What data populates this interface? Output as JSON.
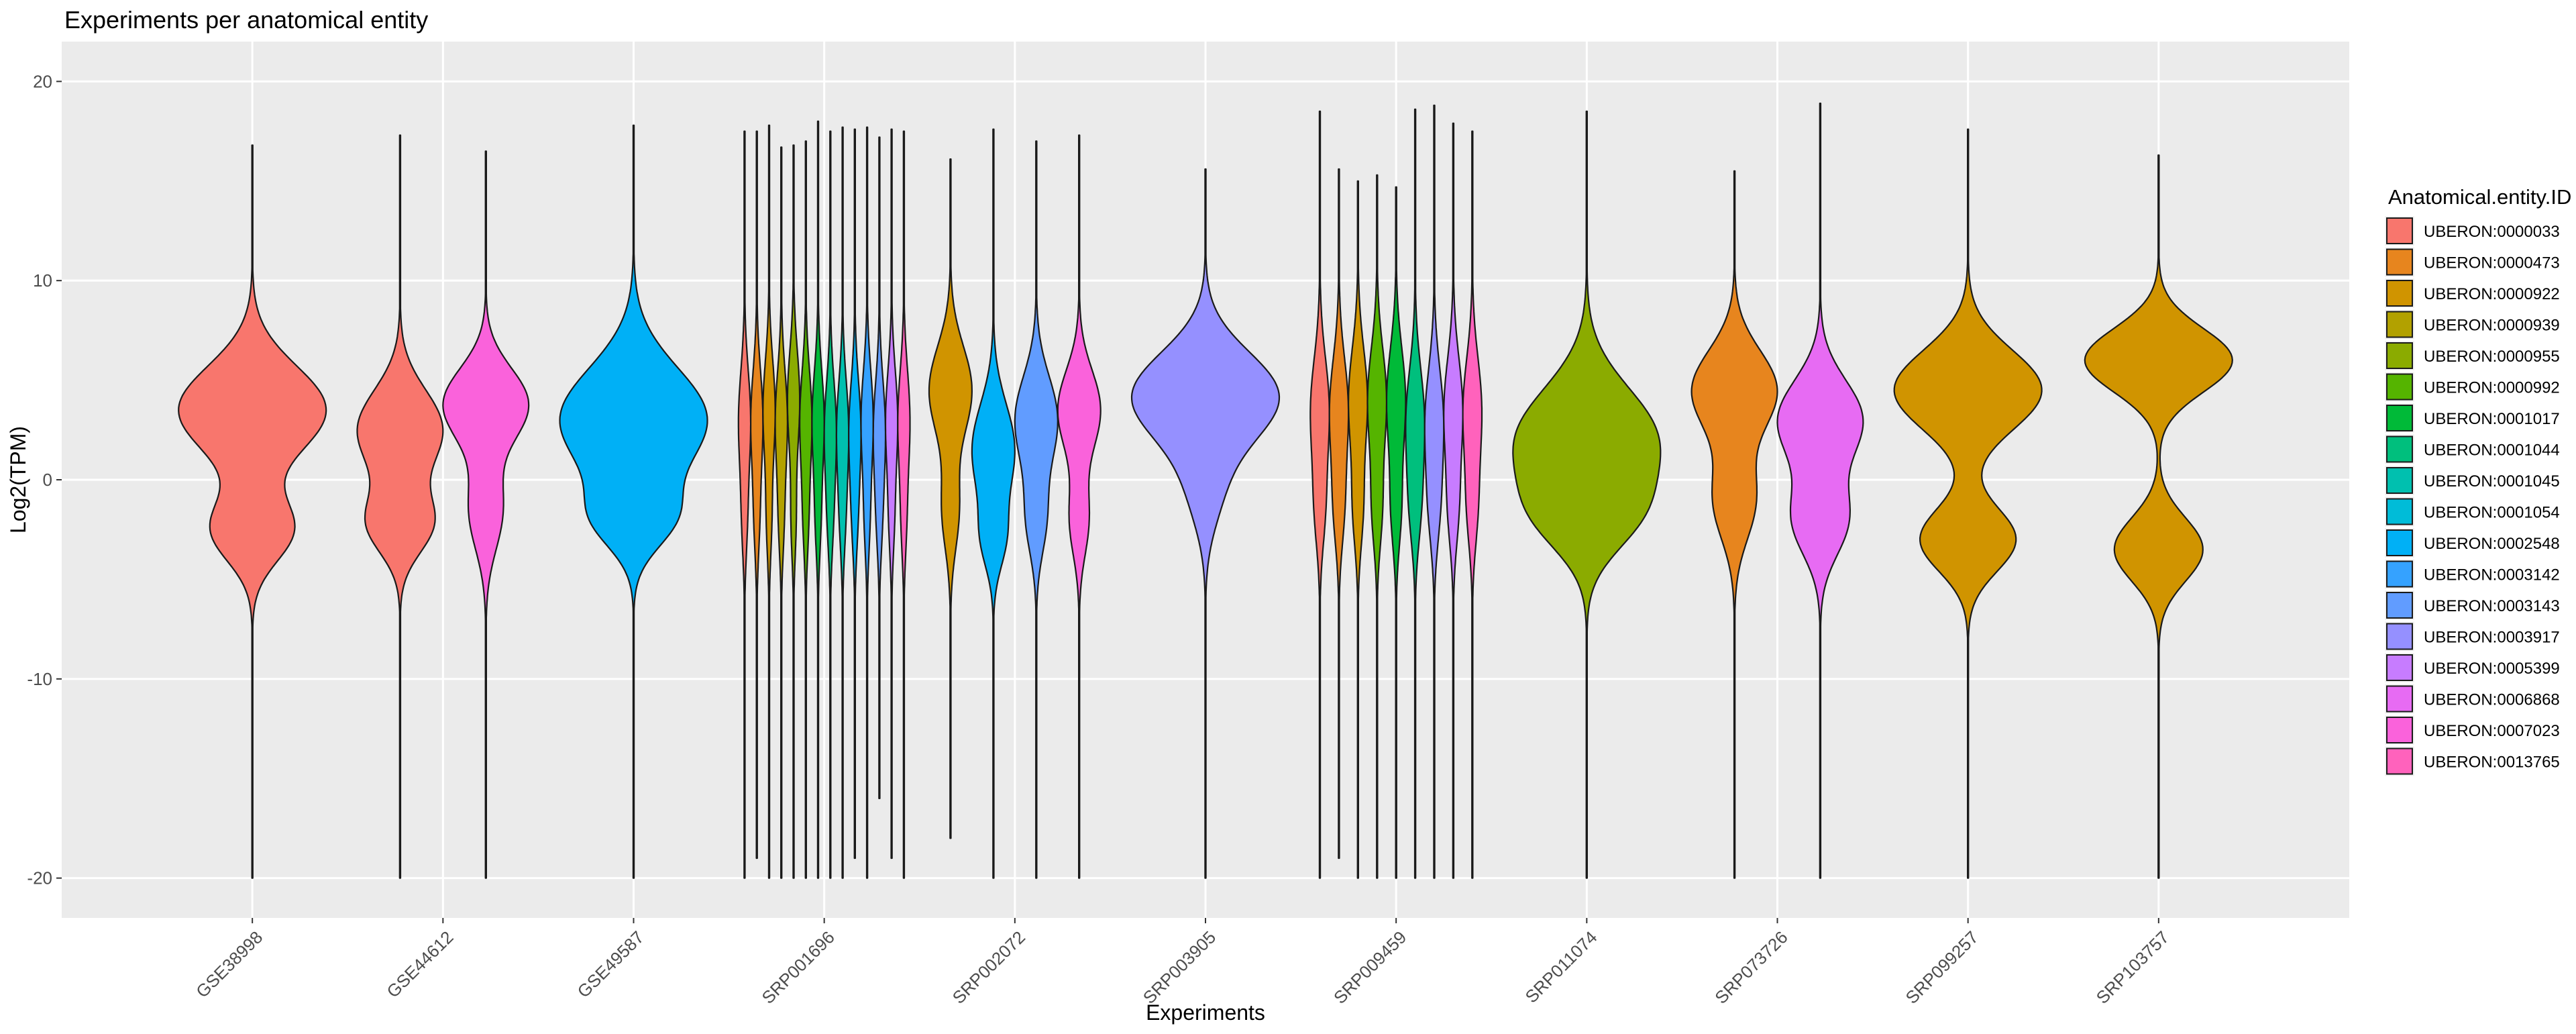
{
  "chart_data": {
    "type": "violin",
    "title": "Experiments per anatomical entity",
    "xlabel": "Experiments",
    "ylabel": "Log2(TPM)",
    "ylim": [
      -22,
      22
    ],
    "yticks": [
      -20,
      -10,
      0,
      10,
      20
    ],
    "grid": true,
    "legend": {
      "title": "Anatomical.entity.ID",
      "position": "right",
      "entries": [
        {
          "label": "UBERON:0000033",
          "color": "#F8766D"
        },
        {
          "label": "UBERON:0000473",
          "color": "#E7851E"
        },
        {
          "label": "UBERON:0000922",
          "color": "#D09400"
        },
        {
          "label": "UBERON:0000939",
          "color": "#B2A100"
        },
        {
          "label": "UBERON:0000955",
          "color": "#8BAB00"
        },
        {
          "label": "UBERON:0000992",
          "color": "#55B400"
        },
        {
          "label": "UBERON:0001017",
          "color": "#00BA38"
        },
        {
          "label": "UBERON:0001044",
          "color": "#00BF7D"
        },
        {
          "label": "UBERON:0001045",
          "color": "#00C0AF"
        },
        {
          "label": "UBERON:0001054",
          "color": "#00BCD8"
        },
        {
          "label": "UBERON:0002548",
          "color": "#00B0F6"
        },
        {
          "label": "UBERON:0003142",
          "color": "#35A2FF"
        },
        {
          "label": "UBERON:0003143",
          "color": "#619CFF"
        },
        {
          "label": "UBERON:0003917",
          "color": "#9590FF"
        },
        {
          "label": "UBERON:0005399",
          "color": "#C77CFF"
        },
        {
          "label": "UBERON:0006868",
          "color": "#E76BF3"
        },
        {
          "label": "UBERON:0007023",
          "color": "#FA62DB"
        },
        {
          "label": "UBERON:0013765",
          "color": "#FF62BC"
        }
      ]
    },
    "categories": [
      "GSE38998",
      "GSE44612",
      "GSE49587",
      "SRP001696",
      "SRP002072",
      "SRP003905",
      "SRP009459",
      "SRP011074",
      "SRP073726",
      "SRP099257",
      "SRP103757"
    ],
    "violins": [
      {
        "experiment": "GSE38998",
        "entity": "UBERON:0000033",
        "min": -20,
        "max": 16.8,
        "modes": [
          [
            3.5,
            1.0,
            2.2
          ],
          [
            -2.5,
            0.55,
            1.6
          ]
        ]
      },
      {
        "experiment": "GSE44612",
        "entity": "UBERON:0000033",
        "min": -20,
        "max": 17.3,
        "modes": [
          [
            2.5,
            0.8,
            2.0
          ],
          [
            -2.2,
            0.6,
            1.5
          ]
        ]
      },
      {
        "experiment": "GSE44612",
        "entity": "UBERON:0007023",
        "min": -20,
        "max": 16.5,
        "modes": [
          [
            3.8,
            1.0,
            1.8
          ],
          [
            -1.5,
            0.4,
            2.0
          ]
        ]
      },
      {
        "experiment": "GSE49587",
        "entity": "UBERON:0002548",
        "min": -20,
        "max": 17.8,
        "modes": [
          [
            3.0,
            1.0,
            2.6
          ],
          [
            -2.0,
            0.45,
            1.5
          ]
        ]
      },
      {
        "experiment": "SRP001696",
        "entity": "UBERON:0000033",
        "min": -20,
        "max": 17.5,
        "modes": [
          [
            3.0,
            1.0,
            2.5
          ],
          [
            -2.0,
            0.4,
            2.0
          ]
        ]
      },
      {
        "experiment": "SRP001696",
        "entity": "UBERON:0000473",
        "min": -19,
        "max": 17.5,
        "modes": [
          [
            3.0,
            1.0,
            2.5
          ],
          [
            -2.0,
            0.4,
            2.0
          ]
        ]
      },
      {
        "experiment": "SRP001696",
        "entity": "UBERON:0000922",
        "min": -20,
        "max": 17.8,
        "modes": [
          [
            3.5,
            1.0,
            2.5
          ],
          [
            -2.0,
            0.4,
            2.0
          ]
        ]
      },
      {
        "experiment": "SRP001696",
        "entity": "UBERON:0000939",
        "min": -20,
        "max": 16.7,
        "modes": [
          [
            3.0,
            1.0,
            2.5
          ],
          [
            -2.0,
            0.4,
            2.0
          ]
        ]
      },
      {
        "experiment": "SRP001696",
        "entity": "UBERON:0000955",
        "min": -20,
        "max": 16.8,
        "modes": [
          [
            4.0,
            1.0,
            2.5
          ],
          [
            -2.0,
            0.4,
            2.0
          ]
        ]
      },
      {
        "experiment": "SRP001696",
        "entity": "UBERON:0000992",
        "min": -20,
        "max": 17.0,
        "modes": [
          [
            3.0,
            1.0,
            2.5
          ],
          [
            -2.0,
            0.4,
            2.0
          ]
        ]
      },
      {
        "experiment": "SRP001696",
        "entity": "UBERON:0001017",
        "min": -20,
        "max": 18.0,
        "modes": [
          [
            3.0,
            1.0,
            2.5
          ],
          [
            -2.0,
            0.4,
            2.0
          ]
        ]
      },
      {
        "experiment": "SRP001696",
        "entity": "UBERON:0001044",
        "min": -20,
        "max": 17.5,
        "modes": [
          [
            2.5,
            1.0,
            2.5
          ],
          [
            -2.0,
            0.4,
            2.0
          ]
        ]
      },
      {
        "experiment": "SRP001696",
        "entity": "UBERON:0001045",
        "min": -20,
        "max": 17.7,
        "modes": [
          [
            2.5,
            1.0,
            2.5
          ],
          [
            -2.0,
            0.4,
            2.0
          ]
        ]
      },
      {
        "experiment": "SRP001696",
        "entity": "UBERON:0002548",
        "min": -19,
        "max": 17.6,
        "modes": [
          [
            2.5,
            1.0,
            2.5
          ],
          [
            -2.0,
            0.4,
            2.0
          ]
        ]
      },
      {
        "experiment": "SRP001696",
        "entity": "UBERON:0003142",
        "min": -20,
        "max": 17.7,
        "modes": [
          [
            3.0,
            1.0,
            2.5
          ],
          [
            -2.0,
            0.4,
            2.0
          ]
        ]
      },
      {
        "experiment": "SRP001696",
        "entity": "UBERON:0003143",
        "min": -16,
        "max": 17.2,
        "modes": [
          [
            2.5,
            1.0,
            2.5
          ],
          [
            -2.0,
            0.4,
            2.0
          ]
        ]
      },
      {
        "experiment": "SRP001696",
        "entity": "UBERON:0005399",
        "min": -19,
        "max": 17.6,
        "modes": [
          [
            3.0,
            1.0,
            2.5
          ],
          [
            -2.0,
            0.4,
            2.0
          ]
        ]
      },
      {
        "experiment": "SRP001696",
        "entity": "UBERON:0013765",
        "min": -20,
        "max": 17.5,
        "modes": [
          [
            3.0,
            1.0,
            2.5
          ],
          [
            -2.0,
            0.4,
            2.0
          ]
        ]
      },
      {
        "experiment": "SRP002072",
        "entity": "UBERON:0000922",
        "min": -18,
        "max": 16.1,
        "modes": [
          [
            4.5,
            1.0,
            2.2
          ],
          [
            -1.5,
            0.4,
            2.0
          ]
        ]
      },
      {
        "experiment": "SRP002072",
        "entity": "UBERON:0002548",
        "min": -20,
        "max": 17.6,
        "modes": [
          [
            1.5,
            1.0,
            2.3
          ],
          [
            -3.0,
            0.5,
            1.5
          ]
        ]
      },
      {
        "experiment": "SRP002072",
        "entity": "UBERON:0003143",
        "min": -20,
        "max": 17.0,
        "modes": [
          [
            3.0,
            1.0,
            2.2
          ],
          [
            -2.0,
            0.45,
            1.8
          ]
        ]
      },
      {
        "experiment": "SRP002072",
        "entity": "UBERON:0007023",
        "min": -20,
        "max": 17.3,
        "modes": [
          [
            3.5,
            1.0,
            2.0
          ],
          [
            -2.0,
            0.45,
            1.8
          ]
        ]
      },
      {
        "experiment": "SRP003905",
        "entity": "UBERON:0003917",
        "min": -20,
        "max": 15.6,
        "modes": [
          [
            4.2,
            1.0,
            2.2
          ],
          [
            -0.5,
            0.2,
            2.0
          ]
        ]
      },
      {
        "experiment": "SRP009459",
        "entity": "UBERON:0000033",
        "min": -20,
        "max": 18.5,
        "modes": [
          [
            3.5,
            1.0,
            2.6
          ],
          [
            -1.5,
            0.5,
            2.0
          ]
        ]
      },
      {
        "experiment": "SRP009459",
        "entity": "UBERON:0000473",
        "min": -19,
        "max": 15.6,
        "modes": [
          [
            3.5,
            1.0,
            2.6
          ],
          [
            -1.5,
            0.5,
            2.0
          ]
        ]
      },
      {
        "experiment": "SRP009459",
        "entity": "UBERON:0000922",
        "min": -20,
        "max": 15.0,
        "modes": [
          [
            4.0,
            1.0,
            2.6
          ],
          [
            -1.5,
            0.5,
            2.0
          ]
        ]
      },
      {
        "experiment": "SRP009459",
        "entity": "UBERON:0000992",
        "min": -20,
        "max": 15.3,
        "modes": [
          [
            4.0,
            1.0,
            2.6
          ],
          [
            -1.5,
            0.5,
            2.0
          ]
        ]
      },
      {
        "experiment": "SRP009459",
        "entity": "UBERON:0001017",
        "min": -20,
        "max": 14.7,
        "modes": [
          [
            4.0,
            1.0,
            2.6
          ],
          [
            -1.5,
            0.5,
            2.0
          ]
        ]
      },
      {
        "experiment": "SRP009459",
        "entity": "UBERON:0001044",
        "min": -20,
        "max": 18.6,
        "modes": [
          [
            3.0,
            1.0,
            2.6
          ],
          [
            -1.5,
            0.5,
            2.0
          ]
        ]
      },
      {
        "experiment": "SRP009459",
        "entity": "UBERON:0003917",
        "min": -20,
        "max": 18.8,
        "modes": [
          [
            3.0,
            1.0,
            2.6
          ],
          [
            -1.5,
            0.5,
            2.0
          ]
        ]
      },
      {
        "experiment": "SRP009459",
        "entity": "UBERON:0005399",
        "min": -20,
        "max": 17.9,
        "modes": [
          [
            3.5,
            1.0,
            2.6
          ],
          [
            -1.5,
            0.5,
            2.0
          ]
        ]
      },
      {
        "experiment": "SRP009459",
        "entity": "UBERON:0013765",
        "min": -20,
        "max": 17.5,
        "modes": [
          [
            3.5,
            1.0,
            2.6
          ],
          [
            -1.5,
            0.5,
            2.0
          ]
        ]
      },
      {
        "experiment": "SRP011074",
        "entity": "UBERON:0000955",
        "min": -20,
        "max": 18.5,
        "modes": [
          [
            2.0,
            1.0,
            2.6
          ],
          [
            -2.0,
            0.5,
            1.8
          ]
        ]
      },
      {
        "experiment": "SRP073726",
        "entity": "UBERON:0000473",
        "min": -20,
        "max": 15.5,
        "modes": [
          [
            4.5,
            1.0,
            2.0
          ],
          [
            -1.0,
            0.5,
            2.0
          ]
        ]
      },
      {
        "experiment": "SRP073726",
        "entity": "UBERON:0006868",
        "min": -20,
        "max": 18.9,
        "modes": [
          [
            3.0,
            1.0,
            2.0
          ],
          [
            -2.0,
            0.65,
            1.8
          ]
        ]
      },
      {
        "experiment": "SRP099257",
        "entity": "UBERON:0000922",
        "min": -20,
        "max": 17.6,
        "modes": [
          [
            4.5,
            1.0,
            2.0
          ],
          [
            -3.0,
            0.65,
            1.6
          ]
        ]
      },
      {
        "experiment": "SRP103757",
        "entity": "UBERON:0000922",
        "min": -20,
        "max": 16.3,
        "modes": [
          [
            6.0,
            1.0,
            1.6
          ],
          [
            -3.5,
            0.6,
            1.6
          ]
        ]
      }
    ]
  }
}
